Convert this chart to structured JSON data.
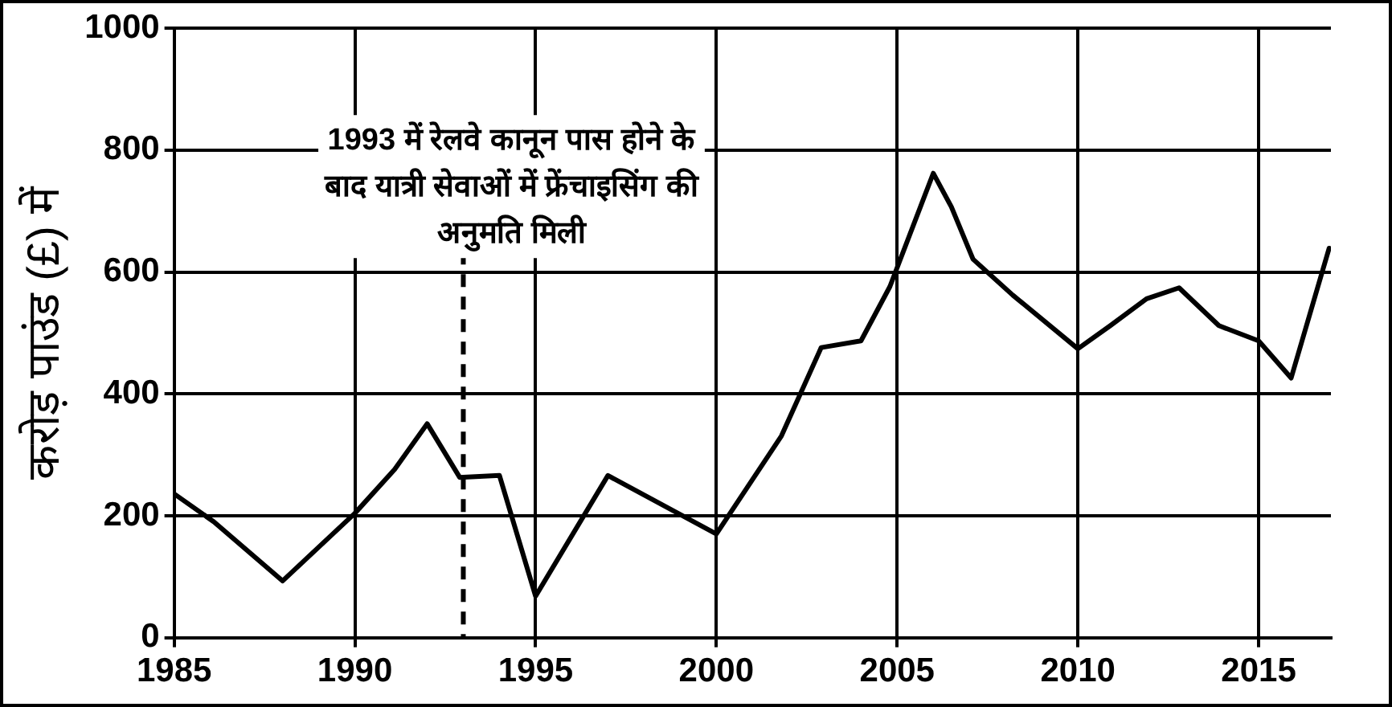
{
  "chart_data": {
    "type": "line",
    "ylabel": "करोड़ पाउंड (£) में",
    "x": [
      1985,
      1986.1,
      1988,
      1990,
      1991.1,
      1992,
      1992.9,
      1994,
      1995,
      1997,
      2000,
      2001.8,
      2002.9,
      2004,
      2004.8,
      2006,
      2006.5,
      2007.1,
      2008.2,
      2010,
      2010.9,
      2011.9,
      2012.8,
      2013.9,
      2015,
      2015.9,
      2016.95
    ],
    "series": [
      {
        "color": "#000000",
        "values": [
          236,
          190,
          93,
          204,
          276,
          351,
          263,
          266,
          68,
          266,
          170,
          331,
          476,
          487,
          576,
          762,
          707,
          621,
          562,
          474,
          512,
          556,
          574,
          512,
          487,
          426,
          639
        ]
      }
    ],
    "xlim": [
      1985,
      2017
    ],
    "xticks": [
      1985,
      1990,
      1995,
      2000,
      2005,
      2010,
      2015
    ],
    "ylim": [
      0,
      1000
    ],
    "yticks": [
      0,
      200,
      400,
      600,
      800,
      1000
    ],
    "ref_lines": [
      {
        "axis": "x",
        "value": 1993,
        "label": "1993 में रेलवे कानून पास होने के बाद यात्री सेवाओं में फ्रेंचाइसिंग की अनुमति मिली",
        "color": "#000000",
        "line_style": "dashed"
      }
    ],
    "grid": true,
    "legend": false,
    "marker": "none",
    "line_style": "solid"
  }
}
